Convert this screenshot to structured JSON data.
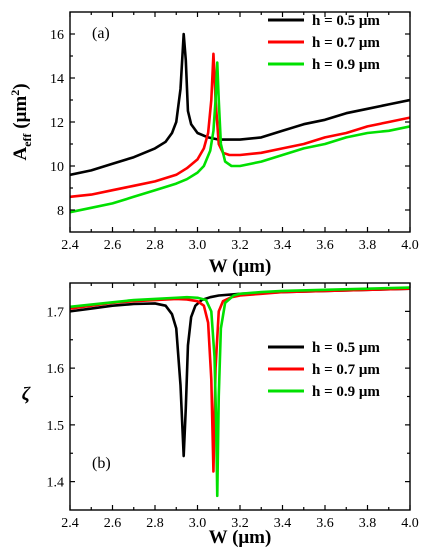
{
  "chart_data": [
    {
      "type": "line",
      "panel": "(a)",
      "xlabel": "W (μm)",
      "ylabel_main": "A",
      "ylabel_sub": "eff",
      "ylabel_unit_pre": " (μm",
      "ylabel_unit_sup": "2",
      "ylabel_unit_post": ")",
      "xlim": [
        2.4,
        4.0
      ],
      "ylim": [
        7,
        17
      ],
      "xticks": [
        "2.4",
        "2.6",
        "2.8",
        "3.0",
        "3.2",
        "3.4",
        "3.6",
        "3.8",
        "4.0"
      ],
      "yticks": [
        "8",
        "10",
        "12",
        "14",
        "16"
      ],
      "legend_position": "top-right",
      "series": [
        {
          "name": "h = 0.5 μm",
          "color": "#000000",
          "x": [
            2.4,
            2.5,
            2.6,
            2.7,
            2.8,
            2.85,
            2.88,
            2.9,
            2.92,
            2.935,
            2.945,
            2.955,
            2.97,
            3.0,
            3.05,
            3.1,
            3.15,
            3.2,
            3.3,
            3.4,
            3.5,
            3.6,
            3.7,
            3.8,
            3.9,
            4.0
          ],
          "y": [
            9.6,
            9.8,
            10.1,
            10.4,
            10.8,
            11.1,
            11.5,
            12.0,
            13.5,
            16.0,
            14.8,
            12.5,
            11.9,
            11.5,
            11.3,
            11.2,
            11.2,
            11.2,
            11.3,
            11.6,
            11.9,
            12.1,
            12.4,
            12.6,
            12.8,
            13.0
          ]
        },
        {
          "name": "h = 0.7 μm",
          "color": "#ff0000",
          "x": [
            2.4,
            2.5,
            2.6,
            2.7,
            2.8,
            2.9,
            2.95,
            3.0,
            3.03,
            3.05,
            3.065,
            3.075,
            3.085,
            3.1,
            3.12,
            3.15,
            3.2,
            3.3,
            3.4,
            3.5,
            3.6,
            3.7,
            3.8,
            3.9,
            4.0
          ],
          "y": [
            8.6,
            8.7,
            8.9,
            9.1,
            9.3,
            9.6,
            9.9,
            10.3,
            10.8,
            11.5,
            13.0,
            15.1,
            13.0,
            11.0,
            10.6,
            10.5,
            10.5,
            10.6,
            10.8,
            11.0,
            11.3,
            11.5,
            11.8,
            12.0,
            12.2
          ]
        },
        {
          "name": "h = 0.9 μm",
          "color": "#00e000",
          "x": [
            2.4,
            2.5,
            2.6,
            2.7,
            2.8,
            2.9,
            2.95,
            3.0,
            3.03,
            3.06,
            3.075,
            3.085,
            3.093,
            3.1,
            3.11,
            3.13,
            3.16,
            3.2,
            3.3,
            3.4,
            3.5,
            3.6,
            3.7,
            3.8,
            3.9,
            4.0
          ],
          "y": [
            7.9,
            8.1,
            8.3,
            8.6,
            8.9,
            9.2,
            9.4,
            9.7,
            10.0,
            10.7,
            11.6,
            13.0,
            14.7,
            13.0,
            11.0,
            10.2,
            10.0,
            10.0,
            10.2,
            10.5,
            10.8,
            11.0,
            11.3,
            11.5,
            11.6,
            11.8
          ]
        }
      ]
    },
    {
      "type": "line",
      "panel": "(b)",
      "xlabel": "W (μm)",
      "ylabel": "ζ",
      "xlim": [
        2.4,
        4.0
      ],
      "ylim": [
        1.35,
        1.75
      ],
      "xticks": [
        "2.4",
        "2.6",
        "2.8",
        "3.0",
        "3.2",
        "3.4",
        "3.6",
        "3.8",
        "4.0"
      ],
      "yticks": [
        "1.4",
        "1.5",
        "1.6",
        "1.7"
      ],
      "legend_position": "center-right",
      "series": [
        {
          "name": "h = 0.5 μm",
          "color": "#000000",
          "x": [
            2.4,
            2.5,
            2.6,
            2.7,
            2.8,
            2.85,
            2.88,
            2.9,
            2.92,
            2.935,
            2.945,
            2.955,
            2.97,
            2.99,
            3.02,
            3.06,
            3.1,
            3.2,
            3.4,
            3.6,
            3.8,
            4.0
          ],
          "y": [
            1.7,
            1.705,
            1.71,
            1.713,
            1.714,
            1.71,
            1.695,
            1.67,
            1.57,
            1.445,
            1.53,
            1.64,
            1.69,
            1.71,
            1.72,
            1.725,
            1.728,
            1.731,
            1.734,
            1.736,
            1.738,
            1.74
          ]
        },
        {
          "name": "h = 0.7 μm",
          "color": "#ff0000",
          "x": [
            2.4,
            2.5,
            2.6,
            2.7,
            2.8,
            2.9,
            2.95,
            3.0,
            3.03,
            3.05,
            3.065,
            3.075,
            3.085,
            3.1,
            3.12,
            3.16,
            3.2,
            3.3,
            3.4,
            3.6,
            3.8,
            4.0
          ],
          "y": [
            1.705,
            1.71,
            1.715,
            1.718,
            1.72,
            1.722,
            1.721,
            1.718,
            1.71,
            1.68,
            1.58,
            1.418,
            1.6,
            1.7,
            1.718,
            1.725,
            1.728,
            1.731,
            1.734,
            1.736,
            1.738,
            1.74
          ]
        },
        {
          "name": "h = 0.9 μm",
          "color": "#00e000",
          "x": [
            2.4,
            2.5,
            2.6,
            2.7,
            2.8,
            2.9,
            2.95,
            3.0,
            3.04,
            3.065,
            3.08,
            3.088,
            3.093,
            3.1,
            3.11,
            3.13,
            3.17,
            3.2,
            3.3,
            3.4,
            3.6,
            3.8,
            4.0
          ],
          "y": [
            1.708,
            1.712,
            1.716,
            1.72,
            1.722,
            1.724,
            1.725,
            1.724,
            1.72,
            1.7,
            1.62,
            1.5,
            1.375,
            1.55,
            1.67,
            1.715,
            1.728,
            1.731,
            1.734,
            1.736,
            1.738,
            1.74,
            1.742
          ]
        }
      ]
    }
  ]
}
